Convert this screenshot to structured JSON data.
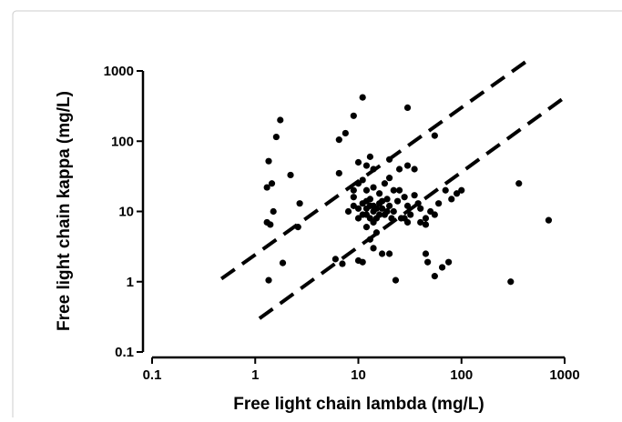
{
  "chart_data": {
    "type": "scatter",
    "xlabel": "Free light chain lambda (mg/L)",
    "ylabel": "Free light chain kappa (mg/L)",
    "xscale": "log",
    "yscale": "log",
    "xlim": [
      0.1,
      1000
    ],
    "ylim": [
      0.1,
      1000
    ],
    "xticks": [
      0.1,
      1,
      10,
      100,
      1000
    ],
    "yticks": [
      0.1,
      1,
      10,
      100,
      1000
    ],
    "color": "#000000",
    "x": [
      1.35,
      1.3,
      1.45,
      1.6,
      1.75,
      1.3,
      1.4,
      1.5,
      1.35,
      1.85,
      2.2,
      2.7,
      2.6,
      6.5,
      7.5,
      9,
      11,
      30,
      55,
      6.5,
      7,
      6,
      9,
      10,
      11,
      10,
      12,
      13,
      14,
      20,
      25,
      30,
      35,
      8,
      9,
      10,
      11,
      12,
      12,
      13,
      14,
      15,
      16,
      17,
      18,
      19,
      20,
      22,
      24,
      26,
      28,
      30,
      32,
      35,
      38,
      40,
      9,
      10,
      11,
      12,
      14,
      16,
      18,
      20,
      22,
      25,
      15,
      12,
      13,
      14,
      17,
      20,
      23,
      45,
      47,
      55,
      65,
      75,
      45,
      50,
      55,
      60,
      70,
      80,
      90,
      100,
      45,
      40,
      30,
      28,
      300,
      360,
      700,
      10,
      11,
      12,
      13,
      14,
      15,
      16,
      17,
      19,
      21,
      13,
      14
    ],
    "values": [
      52,
      22,
      25,
      115,
      200,
      7,
      6.5,
      10,
      1.05,
      1.85,
      33,
      13,
      6,
      105,
      130,
      230,
      420,
      300,
      120,
      35,
      1.8,
      2.1,
      20,
      2,
      1.9,
      50,
      45,
      60,
      40,
      55,
      40,
      45,
      40,
      10,
      12,
      8,
      9,
      11,
      14,
      12,
      10,
      8,
      13,
      11,
      9,
      15,
      12,
      10,
      14,
      8,
      16,
      12,
      9,
      17,
      13,
      11,
      16,
      25,
      28,
      20,
      22,
      18,
      25,
      30,
      20,
      20,
      5,
      6,
      4,
      3,
      2.5,
      2.5,
      1.05,
      2.5,
      1.9,
      1.2,
      1.6,
      1.9,
      8,
      10,
      9,
      13,
      20,
      15,
      18,
      20,
      6.5,
      7,
      7,
      8,
      1.0,
      25,
      7.5,
      11,
      13,
      9,
      8,
      12,
      11,
      9,
      14,
      10,
      8,
      15,
      7
    ],
    "reference_lines": [
      {
        "x": [
          0.47,
          420
        ],
        "y": [
          1.1,
          1350
        ]
      },
      {
        "x": [
          1.1,
          1000
        ],
        "y": [
          0.3,
          420
        ]
      }
    ]
  }
}
